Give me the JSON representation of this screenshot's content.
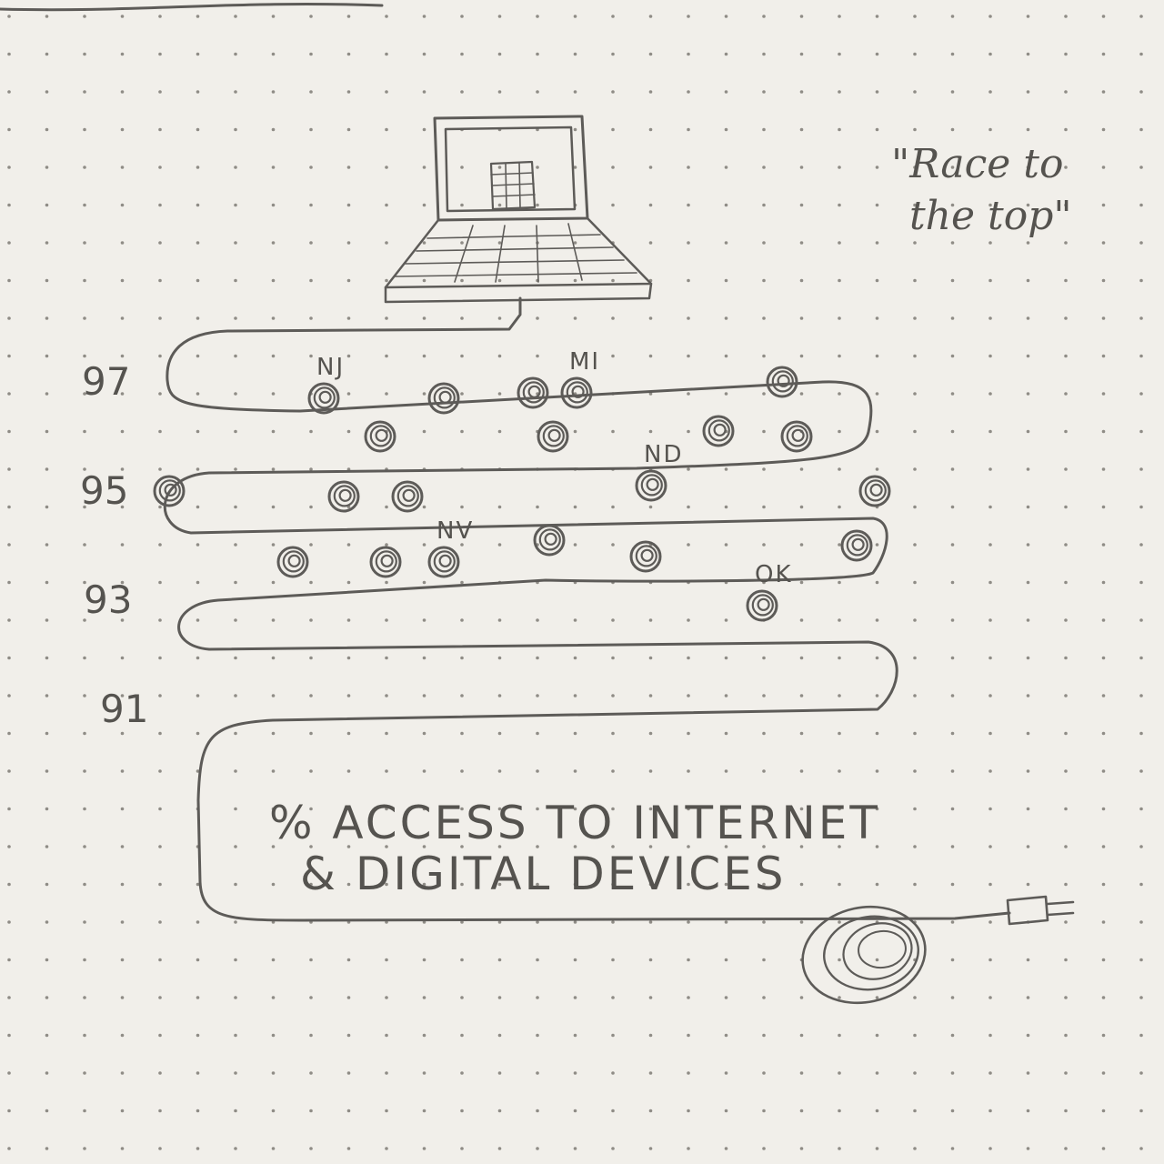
{
  "title": "\"Race to the top\"",
  "title_lines": [
    "\"Race to",
    "the top\""
  ],
  "caption_lines": [
    "% ACCESS TO INTERNET",
    "& DIGITAL DEVICES"
  ],
  "colors": {
    "paper": "#f1efea",
    "pencil": "#5d5b58",
    "dot": "#8f8c86"
  },
  "icons": [
    "laptop-icon",
    "spreadsheet-icon",
    "power-plug-icon",
    "cord-coil-icon"
  ],
  "chart_data": {
    "type": "scatter",
    "title": "\"Race to the top\"",
    "ylabel": "% ACCESS TO INTERNET & DIGITAL DEVICES",
    "xlabel": "",
    "y_ticks": [
      97,
      95,
      93,
      91
    ],
    "y_tick_labels": [
      "97",
      "95",
      "93",
      "91"
    ],
    "ylim": [
      91,
      97.5
    ],
    "grid": false,
    "points": [
      {
        "state": "NJ",
        "value": 96.7
      },
      {
        "state": "",
        "value": 96.7
      },
      {
        "state": "",
        "value": 96.8
      },
      {
        "state": "MI",
        "value": 96.8
      },
      {
        "state": "",
        "value": 97.0
      },
      {
        "state": "",
        "value": 96.0
      },
      {
        "state": "",
        "value": 96.0
      },
      {
        "state": "",
        "value": 96.1
      },
      {
        "state": "",
        "value": 96.0
      },
      {
        "state": "",
        "value": 95.0
      },
      {
        "state": "",
        "value": 94.9
      },
      {
        "state": "",
        "value": 94.9
      },
      {
        "state": "ND",
        "value": 95.1
      },
      {
        "state": "",
        "value": 95.0
      },
      {
        "state": "",
        "value": 94.0
      },
      {
        "state": "",
        "value": 94.1
      },
      {
        "state": "",
        "value": 93.7
      },
      {
        "state": "",
        "value": 93.7
      },
      {
        "state": "NV",
        "value": 93.7
      },
      {
        "state": "",
        "value": 93.8
      },
      {
        "state": "OK",
        "value": 92.9
      }
    ]
  }
}
